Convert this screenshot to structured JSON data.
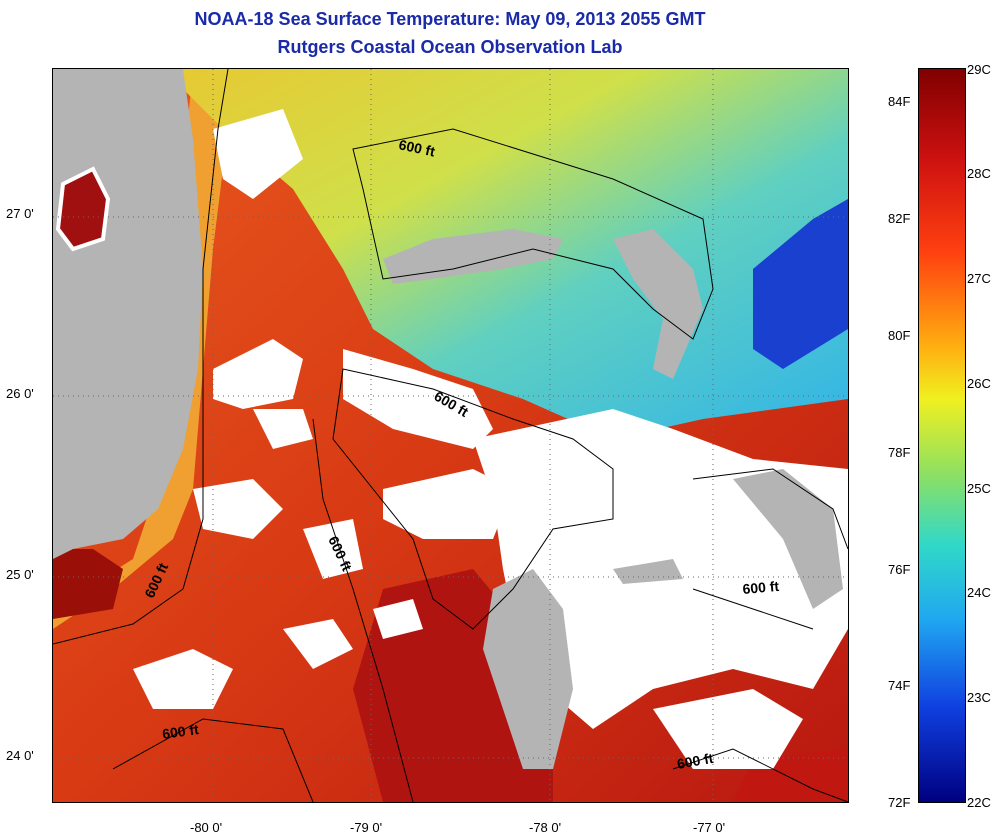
{
  "header": {
    "title": "NOAA-18 Sea Surface Temperature:  May 09, 2013 2055 GMT",
    "subtitle": "Rutgers Coastal Ocean Observation Lab"
  },
  "map": {
    "lat_ticks": [
      "27 0'",
      "26 0'",
      "25 0'",
      "24 0'"
    ],
    "lon_ticks": [
      "-80 0'",
      "-79 0'",
      "-78 0'",
      "-77 0'"
    ],
    "contour_labels": [
      "600 ft",
      "600 ft",
      "600 ft",
      "600 ft",
      "600 ft",
      "600 ft"
    ],
    "colors": {
      "land": "#b4b4b4",
      "cloud": "#ffffff",
      "warm": "#e8501c",
      "cool": "#2ab8e8"
    }
  },
  "colorbar": {
    "celsius": [
      "29C",
      "28C",
      "27C",
      "26C",
      "25C",
      "24C",
      "23C",
      "22C"
    ],
    "fahrenheit": [
      "84F",
      "82F",
      "80F",
      "78F",
      "76F",
      "74F",
      "72F"
    ],
    "range_c": [
      22,
      29
    ]
  }
}
